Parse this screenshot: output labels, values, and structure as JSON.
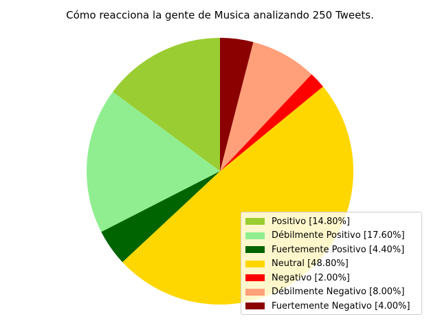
{
  "chart_data": {
    "type": "pie",
    "title": "Cómo reacciona la gente de Musica analizando 250 Tweets.",
    "start_angle_deg": 90,
    "direction": "counterclockwise",
    "slices": [
      {
        "label": "Positivo [14.80%]",
        "value": 14.8,
        "color": "#9acd32"
      },
      {
        "label": "Débilmente Positivo [17.60%]",
        "value": 17.6,
        "color": "#90ee90"
      },
      {
        "label": "Fuertemente Positivo [4.40%]",
        "value": 4.4,
        "color": "#006400"
      },
      {
        "label": "Neutral [48.80%]",
        "value": 48.8,
        "color": "#ffd700"
      },
      {
        "label": "Negativo [2.00%]",
        "value": 2.0,
        "color": "#ff0000"
      },
      {
        "label": "Débilmente Negativo [8.00%]",
        "value": 8.0,
        "color": "#ffa07a"
      },
      {
        "label": "Fuertemente Negativo [4.00%]",
        "value": 4.0,
        "color": "#8b0000"
      }
    ],
    "legend_position": "lower-right"
  }
}
